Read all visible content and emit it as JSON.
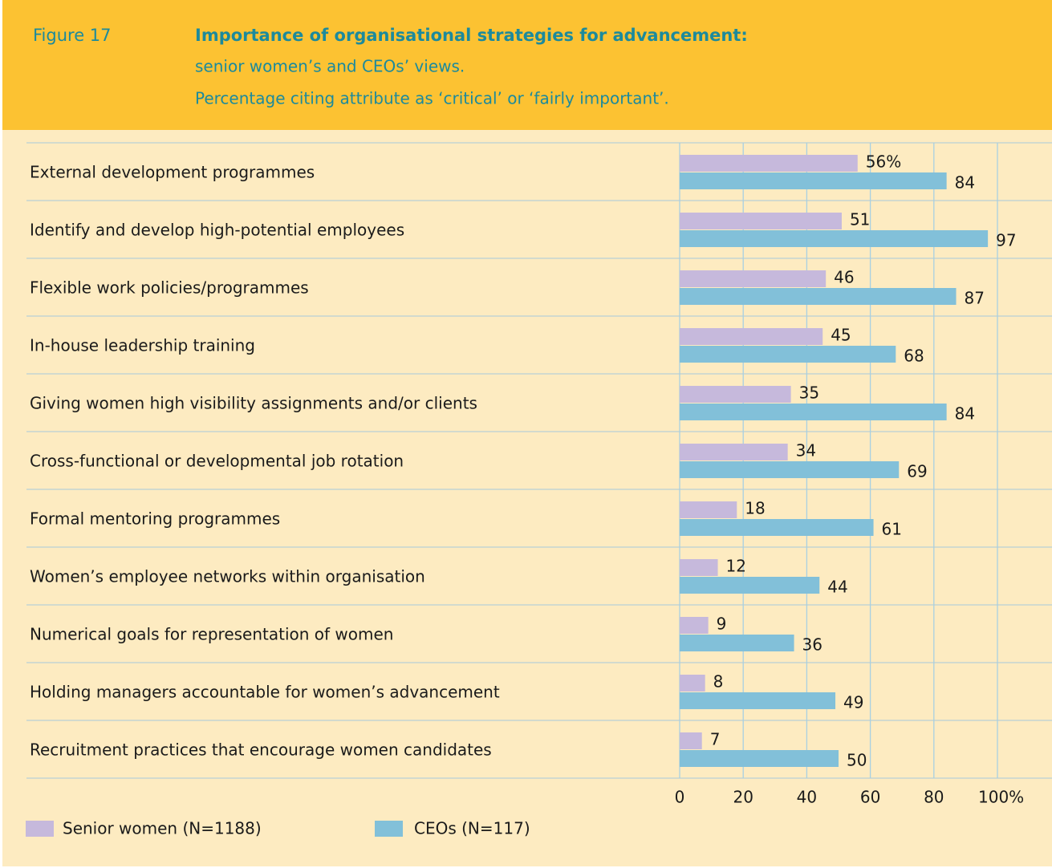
{
  "chart_data": {
    "type": "hbar",
    "figure_label": "Figure 17",
    "title": "Importance of organisational strategies for advancement:",
    "subtitle": [
      "senior women’s and CEOs’ views.",
      "Percentage citing attribute as ‘critical’ or ‘fairly important’."
    ],
    "categories": [
      "External development programmes",
      "Identify and develop high-potential employees",
      "Flexible work policies/programmes",
      "In-house leadership training",
      "Giving women high visibility assignments and/or clients",
      "Cross-functional or developmental job rotation",
      "Formal mentoring programmes",
      "Women’s employee networks within organisation",
      "Numerical goals for representation of women",
      "Holding managers accountable for women’s advancement",
      "Recruitment practices that encourage women candidates"
    ],
    "series": [
      {
        "name": "Senior women (N=1188)",
        "color": "#c6b9dc",
        "values": [
          56,
          51,
          46,
          45,
          35,
          34,
          18,
          12,
          9,
          8,
          7
        ],
        "value_labels": [
          "56%",
          "51",
          "46",
          "45",
          "35",
          "34",
          "18",
          "12",
          "9",
          "8",
          "7"
        ]
      },
      {
        "name": "CEOs (N=117)",
        "color": "#82c0d9",
        "values": [
          84,
          97,
          87,
          68,
          84,
          69,
          61,
          44,
          36,
          49,
          50
        ]
      }
    ],
    "xlim": [
      0,
      100
    ],
    "xticks": [
      0,
      20,
      40,
      60,
      80,
      {
        "value": 100,
        "label": "100%"
      }
    ],
    "grid": true
  }
}
